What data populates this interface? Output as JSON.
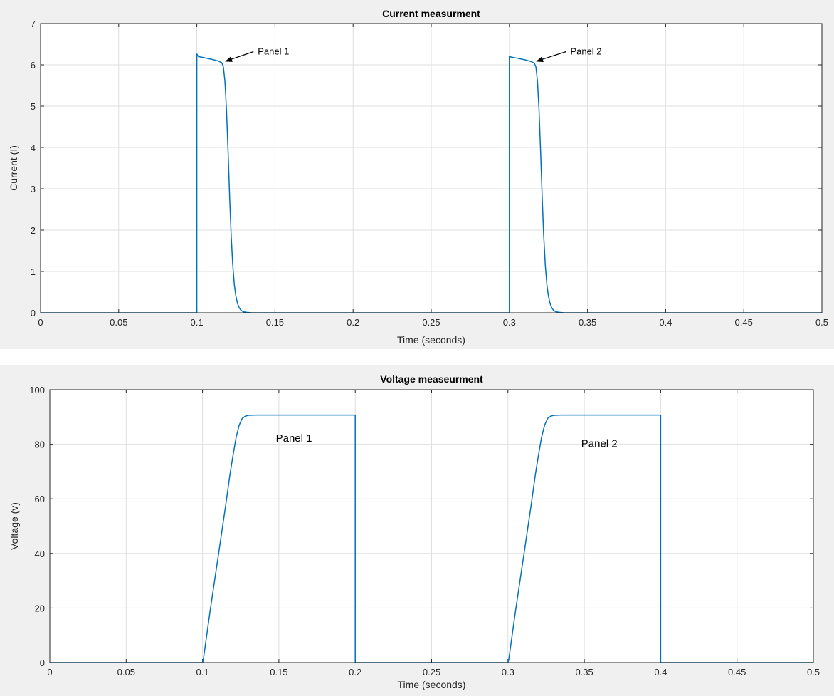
{
  "colors": {
    "figure_bg": "#f0f0f0",
    "axes_bg": "#ffffff",
    "grid": "#dfdfdf",
    "line": "#0072bd",
    "text": "#262626"
  },
  "chart_data": [
    {
      "type": "line",
      "title": "Current measurment",
      "xlabel": "Time (seconds)",
      "ylabel": "Current (I)",
      "xlim": [
        0,
        0.5
      ],
      "ylim": [
        0,
        7
      ],
      "xticks": [
        0,
        0.05,
        0.1,
        0.15,
        0.2,
        0.25,
        0.3,
        0.35,
        0.4,
        0.45,
        0.5
      ],
      "xtick_labels": [
        "0",
        "0.05",
        "0.1",
        "0.15",
        "0.2",
        "0.25",
        "0.3",
        "0.35",
        "0.4",
        "0.45",
        "0.5"
      ],
      "yticks": [
        0,
        1,
        2,
        3,
        4,
        5,
        6,
        7
      ],
      "ytick_labels": [
        "0",
        "1",
        "2",
        "3",
        "4",
        "5",
        "6",
        "7"
      ],
      "grid": true,
      "series": [
        {
          "color": "#0072bd",
          "x": [
            0,
            0.1,
            0.1,
            0.101,
            0.105,
            0.11,
            0.114,
            0.116,
            0.117,
            0.118,
            0.119,
            0.12,
            0.121,
            0.122,
            0.123,
            0.124,
            0.125,
            0.126,
            0.127,
            0.128,
            0.129,
            0.13,
            0.132,
            0.135,
            0.3,
            0.3,
            0.301,
            0.305,
            0.31,
            0.314,
            0.316,
            0.317,
            0.318,
            0.319,
            0.32,
            0.321,
            0.322,
            0.323,
            0.324,
            0.325,
            0.326,
            0.327,
            0.328,
            0.329,
            0.33,
            0.332,
            0.335,
            0.5
          ],
          "y": [
            0,
            0,
            6.26,
            6.2,
            6.17,
            6.13,
            6.09,
            6.05,
            5.95,
            5.6,
            4.9,
            3.9,
            2.8,
            1.85,
            1.15,
            0.68,
            0.4,
            0.23,
            0.13,
            0.07,
            0.04,
            0.02,
            0.01,
            0,
            0,
            6.21,
            6.19,
            6.16,
            6.12,
            6.08,
            6.04,
            5.95,
            5.6,
            4.9,
            3.9,
            2.8,
            1.85,
            1.15,
            0.68,
            0.4,
            0.23,
            0.13,
            0.07,
            0.04,
            0.02,
            0.01,
            0,
            0
          ]
        }
      ],
      "annotations": [
        {
          "text": "Panel 1",
          "x": 0.139,
          "y": 6.25,
          "arrow_to": [
            0.118,
            6.08
          ]
        },
        {
          "text": "Panel 2",
          "x": 0.339,
          "y": 6.25,
          "arrow_to": [
            0.317,
            6.08
          ]
        }
      ]
    },
    {
      "type": "line",
      "title": "Voltage measeurment",
      "xlabel": "Time (seconds)",
      "ylabel": "Voltage (v)",
      "xlim": [
        0,
        0.5
      ],
      "ylim": [
        0,
        100
      ],
      "xticks": [
        0,
        0.05,
        0.1,
        0.15,
        0.2,
        0.25,
        0.3,
        0.35,
        0.4,
        0.45,
        0.5
      ],
      "xtick_labels": [
        "0",
        "0.05",
        "0.1",
        "0.15",
        "0.2",
        "0.25",
        "0.3",
        "0.35",
        "0.4",
        "0.45",
        "0.5"
      ],
      "yticks": [
        0,
        20,
        40,
        60,
        80,
        100
      ],
      "ytick_labels": [
        "0",
        "20",
        "40",
        "60",
        "80",
        "100"
      ],
      "grid": true,
      "series": [
        {
          "color": "#0072bd",
          "x": [
            0,
            0.1,
            0.1005,
            0.105,
            0.11,
            0.115,
            0.118,
            0.12,
            0.122,
            0.124,
            0.126,
            0.128,
            0.13,
            0.135,
            0.2,
            0.2,
            0.3,
            0.3005,
            0.305,
            0.31,
            0.315,
            0.318,
            0.32,
            0.322,
            0.324,
            0.326,
            0.328,
            0.33,
            0.335,
            0.4,
            0.4,
            0.5
          ],
          "y": [
            0,
            0,
            1,
            19,
            38,
            57,
            69,
            76,
            82.5,
            87,
            89.5,
            90.3,
            90.6,
            90.7,
            90.7,
            0,
            0,
            1,
            19,
            38,
            57,
            69,
            76,
            82.5,
            87,
            89.5,
            90.3,
            90.6,
            90.7,
            90.7,
            0,
            0
          ]
        }
      ],
      "annotations": [
        {
          "text": "Panel 1",
          "x": 0.148,
          "y": 81
        },
        {
          "text": "Panel 2",
          "x": 0.348,
          "y": 79
        }
      ]
    }
  ]
}
